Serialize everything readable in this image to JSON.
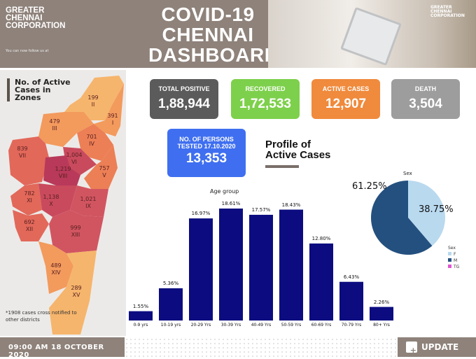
{
  "header": {
    "org": [
      "GREATER",
      "CHENNAI",
      "CORPORATION"
    ],
    "follow_text": "You can now follow us at",
    "title": [
      "COVID-19",
      "CHENNAI",
      "DASHBOARD"
    ],
    "photo_logo": "GREATER CHENNAI CORPORATION"
  },
  "map": {
    "title": [
      "No. of Active",
      "Cases in",
      "Zones"
    ],
    "note": "*1908 cases cross notified to other districts",
    "zones": [
      {
        "zone": "I",
        "cases": "391"
      },
      {
        "zone": "II",
        "cases": "199"
      },
      {
        "zone": "III",
        "cases": "479"
      },
      {
        "zone": "IV",
        "cases": "701"
      },
      {
        "zone": "V",
        "cases": "757"
      },
      {
        "zone": "VI",
        "cases": "1,004"
      },
      {
        "zone": "VII",
        "cases": "839"
      },
      {
        "zone": "VIII",
        "cases": "1,219"
      },
      {
        "zone": "IX",
        "cases": "1,021"
      },
      {
        "zone": "X",
        "cases": "1,138"
      },
      {
        "zone": "XI",
        "cases": "782"
      },
      {
        "zone": "XII",
        "cases": "692"
      },
      {
        "zone": "XIII",
        "cases": "999"
      },
      {
        "zone": "XIV",
        "cases": "489"
      },
      {
        "zone": "XV",
        "cases": "289"
      }
    ]
  },
  "stats": [
    {
      "label": "TOTAL POSITIVE",
      "value": "1,88,944",
      "color": "#5b5b5b"
    },
    {
      "label": "RECOVERED",
      "value": "1,72,533",
      "color": "#7dd04b"
    },
    {
      "label": "ACTIVE CASES",
      "value": "12,907",
      "color": "#f08a3c"
    },
    {
      "label": "DEATH",
      "value": "3,504",
      "color": "#9d9d9d"
    }
  ],
  "tested": {
    "label": [
      "NO. OF PERSONS",
      "TESTED 17.10.2020"
    ],
    "value": "13,353",
    "color": "#3f6ff0"
  },
  "profile": {
    "title": [
      "Profile of",
      "Active Cases"
    ]
  },
  "chart_data": [
    {
      "type": "bar",
      "title": "Age group",
      "categories": [
        "0-9 yrs",
        "10-19 yrs",
        "20-29 Yrs",
        "30-39 Yrs",
        "40-49 Yrs",
        "50-59 Yrs",
        "60-69 Yrs",
        "70-79 Yrs",
        "80+ Yrs"
      ],
      "values": [
        1.55,
        5.36,
        16.97,
        18.61,
        17.57,
        18.43,
        12.8,
        6.43,
        2.26
      ],
      "labels": [
        "1.55%",
        "5.36%",
        "16.97%",
        "18.61%",
        "17.57%",
        "18.43%",
        "12.80%",
        "6.43%",
        "2.26%"
      ],
      "color": "#0c0c80"
    },
    {
      "type": "pie",
      "title": "Sex",
      "legend_title": "Sex",
      "legend_placement": "bottom-right",
      "slices": [
        {
          "name": "F",
          "value": 38.75,
          "label": "38.75%",
          "color": "#b9d9ef"
        },
        {
          "name": "M",
          "value": 61.25,
          "label": "61.25%",
          "color": "#24507f"
        },
        {
          "name": "TG",
          "value": 0,
          "color": "#e055d0"
        }
      ]
    }
  ],
  "footer": {
    "datetime": "09:00 AM 18 OCTOBER 2020",
    "update_label": "UPDATE"
  }
}
